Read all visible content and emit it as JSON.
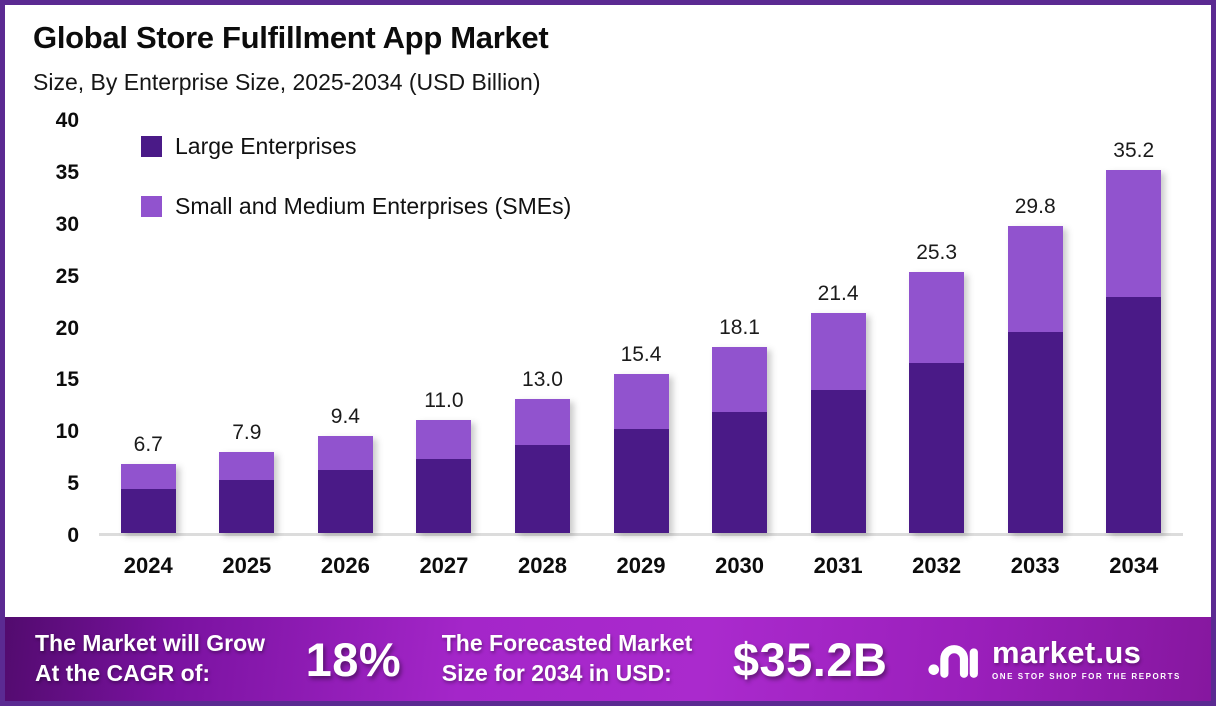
{
  "header": {
    "title": "Global Store Fulfillment App Market",
    "subtitle": "Size, By Enterprise Size, 2025-2034 (USD Billion)"
  },
  "chart_data": {
    "type": "bar",
    "stacked": true,
    "title": "Global Store Fulfillment App Market",
    "subtitle": "Size, By Enterprise Size, 2025-2034 (USD Billion)",
    "categories": [
      "2024",
      "2025",
      "2026",
      "2027",
      "2028",
      "2029",
      "2030",
      "2031",
      "2032",
      "2033",
      "2034"
    ],
    "series": [
      {
        "name": "Large Enterprises",
        "color": "#4a1a87",
        "values": [
          4.3,
          5.1,
          6.1,
          7.2,
          8.5,
          10.1,
          11.7,
          13.9,
          16.5,
          19.5,
          22.9
        ]
      },
      {
        "name": "Small and Medium Enterprises (SMEs)",
        "color": "#9153ce",
        "values": [
          2.4,
          2.8,
          3.3,
          3.8,
          4.5,
          5.3,
          6.4,
          7.5,
          8.8,
          10.3,
          12.3
        ]
      }
    ],
    "totals": [
      6.7,
      7.9,
      9.4,
      11.0,
      13.0,
      15.4,
      18.1,
      21.4,
      25.3,
      29.8,
      35.2
    ],
    "total_labels": [
      "6.7",
      "7.9",
      "9.4",
      "11.0",
      "13.0",
      "15.4",
      "18.1",
      "21.4",
      "25.3",
      "29.8",
      "35.2"
    ],
    "ylabel": "",
    "xlabel": "",
    "ylim": [
      0,
      40
    ],
    "yticks": [
      0,
      5,
      10,
      15,
      20,
      25,
      30,
      35,
      40
    ],
    "grid": false,
    "legend_position": "top-left",
    "baseline_color": "#dcdcdc"
  },
  "banner": {
    "cagr_label_line1": "The Market will Grow",
    "cagr_label_line2": "At the CAGR of:",
    "cagr_value": "18%",
    "forecast_label_line1": "The Forecasted Market",
    "forecast_label_line2": "Size for 2034 in USD:",
    "forecast_value": "$35.2B",
    "logo_name": "market.us",
    "logo_tagline": "ONE STOP SHOP FOR THE REPORTS"
  },
  "colors": {
    "frame_border": "#5b2a92",
    "large_enterprises": "#4a1a87",
    "smes": "#9153ce",
    "banner_gradient_start": "#520b6e",
    "banner_gradient_mid": "#a426c9",
    "banner_gradient_end": "#86179f",
    "baseline": "#dcdcdc",
    "text": "#0c0c0c"
  }
}
